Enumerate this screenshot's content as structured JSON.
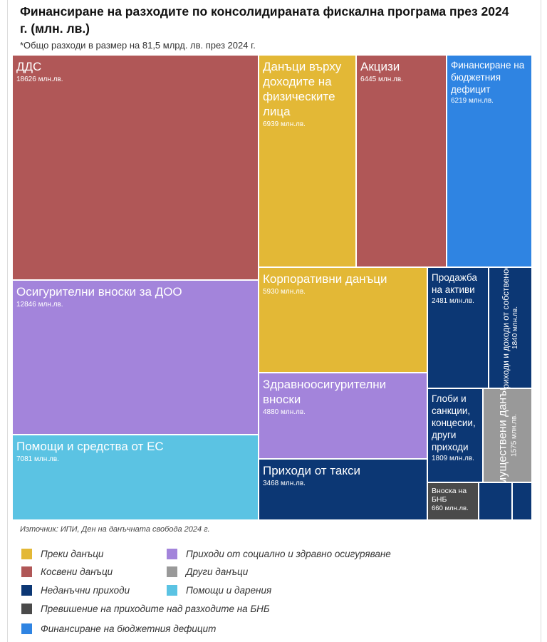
{
  "header": {
    "title": "Финансиране на разходите по консолидираната фискална програма през 2024 г. (млн. лв.)",
    "note": "*Общо разходи в размер на 81,5 млрд. лв. през 2024 г.",
    "source": "Източник: ИПИ, Ден на данъчната свобода 2024 г."
  },
  "colors": {
    "direct": "#E3B836",
    "indirect": "#B05757",
    "social": "#A384DB",
    "grants": "#5BC3E3",
    "nontax": "#0C3774",
    "other": "#999999",
    "bnb": "#4A4A4A",
    "deficit": "#2F84E2"
  },
  "legend": [
    {
      "label": "Преки данъци",
      "color": "#E3B836"
    },
    {
      "label": "Косвени данъци",
      "color": "#B05757"
    },
    {
      "label": "Неданъчни приходи",
      "color": "#0C3774"
    },
    {
      "label": "Превишение на приходите над разходите на БНБ",
      "color": "#4A4A4A"
    },
    {
      "label": "Финансиране на бюджетния дефицит",
      "color": "#2F84E2"
    },
    {
      "label": "Приходи от социално   и здравно осигуряване",
      "color": "#A384DB"
    },
    {
      "label": "Други данъци",
      "color": "#999999"
    },
    {
      "label": "Помощи и дарения",
      "color": "#5BC3E3"
    }
  ],
  "chart_data": {
    "type": "treemap",
    "unit": "млн.лв.",
    "items": [
      {
        "name": "ДДС",
        "value": 18626,
        "label": "18626 млн.лв.",
        "category": "Косвени данъци",
        "color": "#B05757"
      },
      {
        "name": "Осигурителни вноски за ДОО",
        "value": 12846,
        "label": "12846 млн.лв.",
        "category": "Приходи от социално и здравно осигуряване",
        "color": "#A384DB"
      },
      {
        "name": "Помощи и средства от ЕС",
        "value": 7081,
        "label": "7081 млн.лв.",
        "category": "Помощи и дарения",
        "color": "#5BC3E3"
      },
      {
        "name": "Данъци върху доходите на физическите лица",
        "value": 6939,
        "label": "6939 млн.лв.",
        "category": "Преки данъци",
        "color": "#E3B836"
      },
      {
        "name": "Акцизи",
        "value": 6445,
        "label": "6445 млн.лв.",
        "category": "Косвени данъци",
        "color": "#B05757"
      },
      {
        "name": "Финансиране на бюджетния дефицит",
        "value": 6219,
        "label": "6219 млн.лв.",
        "category": "Финансиране на бюджетния дефицит",
        "color": "#2F84E2"
      },
      {
        "name": "Корпоративни данъци",
        "value": 5930,
        "label": "5930 млн.лв.",
        "category": "Преки данъци",
        "color": "#E3B836"
      },
      {
        "name": "Здравноосигурителни вноски",
        "value": 4880,
        "label": "4880 млн.лв.",
        "category": "Приходи от социално и здравно осигуряване",
        "color": "#A384DB"
      },
      {
        "name": "Приходи от такси",
        "value": 3468,
        "label": "3468 млн.лв.",
        "category": "Неданъчни приходи",
        "color": "#0C3774"
      },
      {
        "name": "Продажба на активи",
        "value": 2481,
        "label": "2481 млн.лв.",
        "category": "Неданъчни приходи",
        "color": "#0C3774"
      },
      {
        "name": "Приходи и доходи от собственост",
        "value": 1840,
        "label": "1840 млн.лв.",
        "category": "Неданъчни приходи",
        "color": "#0C3774"
      },
      {
        "name": "Глоби и санкции, концесии, други приходи",
        "value": 1809,
        "label": "1809 млн.лв.",
        "category": "Неданъчни приходи",
        "color": "#0C3774"
      },
      {
        "name": "Имуществени данъци",
        "value": 1575,
        "label": "1575 млн.лв.",
        "category": "Други данъци",
        "color": "#999999"
      },
      {
        "name": "Вноска на БНБ",
        "value": 660,
        "label": "660 млн.лв.",
        "category": "Превишение на приходите над разходите на БНБ",
        "color": "#4A4A4A"
      },
      {
        "name": "",
        "value": null,
        "label": "",
        "category": "Неданъчни приходи",
        "color": "#0C3774"
      },
      {
        "name": "",
        "value": null,
        "label": "",
        "category": "Неданъчни приходи",
        "color": "#0C3774"
      }
    ]
  }
}
